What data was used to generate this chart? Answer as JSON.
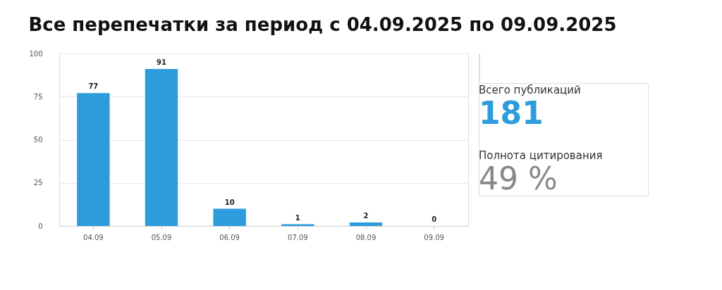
{
  "chart_data": [
    {
      "type": "bar",
      "title": "Все перепечатки за период с 04.09.2025 по 09.09.2025",
      "categories": [
        "04.09",
        "05.09",
        "06.09",
        "07.09",
        "08.09",
        "09.09"
      ],
      "values": [
        77,
        91,
        10,
        1,
        2,
        0
      ],
      "color": "#2d9cdc",
      "ylim": [
        0,
        100
      ],
      "yticks": [
        0,
        25,
        50,
        75,
        100
      ],
      "grid": "y",
      "data_labels": true
    },
    {
      "type": "other",
      "annotations": [
        "Всего публикаций",
        "181",
        "Полнота цитирования",
        "49 %"
      ]
    }
  ]
}
